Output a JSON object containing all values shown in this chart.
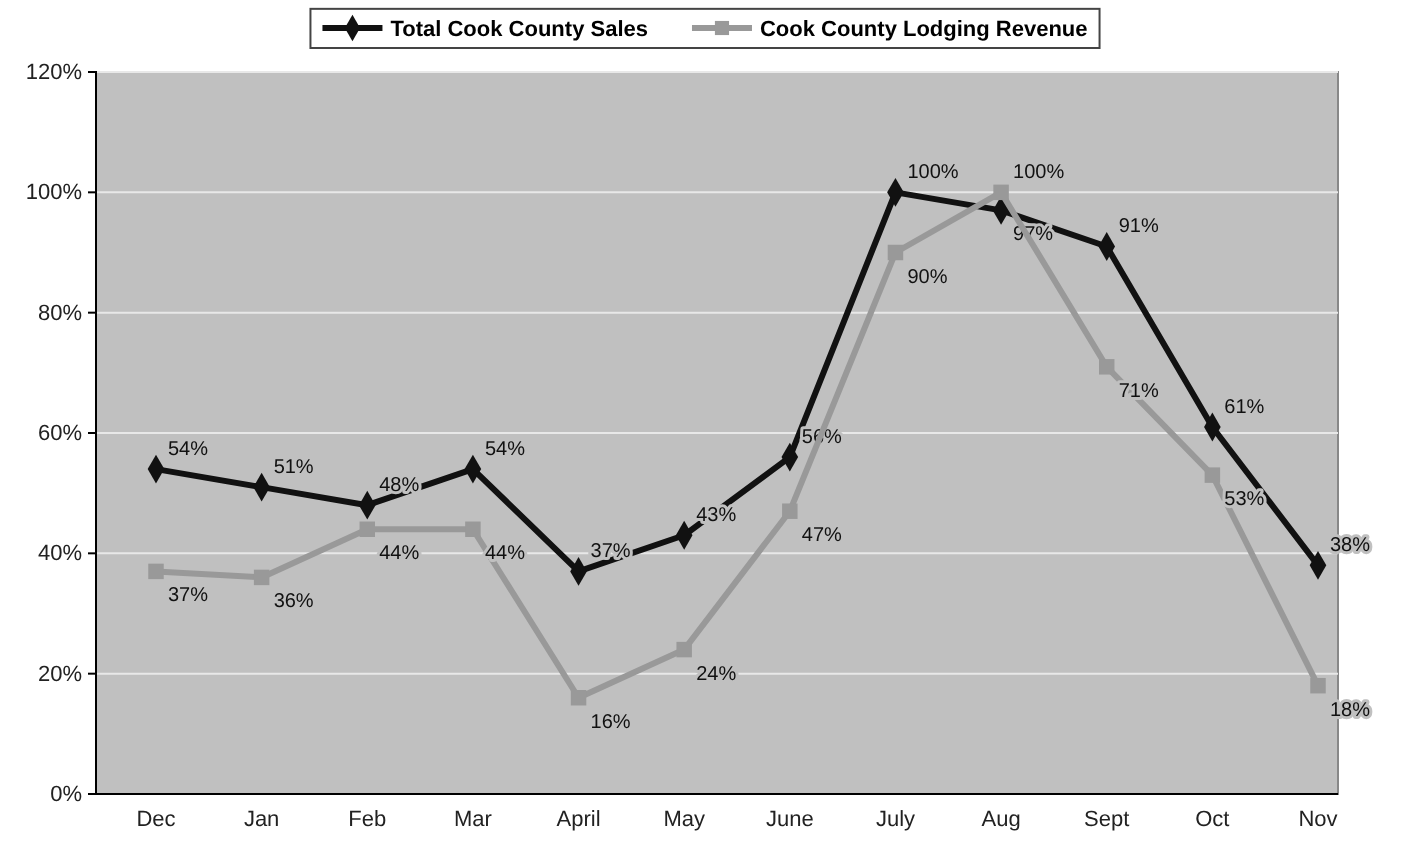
{
  "chart_data": {
    "type": "line",
    "categories": [
      "Dec",
      "Jan",
      "Feb",
      "Mar",
      "April",
      "May",
      "June",
      "July",
      "Aug",
      "Sept",
      "Oct",
      "Nov"
    ],
    "series": [
      {
        "name": "Total Cook County Sales",
        "color": "#111111",
        "marker": "diamond",
        "values": [
          54,
          51,
          48,
          54,
          37,
          43,
          56,
          100,
          97,
          91,
          61,
          38
        ],
        "value_labels": [
          "54%",
          "51%",
          "48%",
          "54%",
          "37%",
          "43%",
          "56%",
          "100%",
          "97%",
          "91%",
          "61%",
          "38%"
        ]
      },
      {
        "name": "Cook County Lodging Revenue",
        "color": "#999999",
        "marker": "square",
        "values": [
          37,
          36,
          44,
          44,
          16,
          24,
          47,
          90,
          100,
          71,
          53,
          18
        ],
        "value_labels": [
          "37%",
          "36%",
          "44%",
          "44%",
          "16%",
          "24%",
          "47%",
          "90%",
          "100%",
          "71%",
          "53%",
          "18%"
        ]
      }
    ],
    "ylim": [
      0,
      120
    ],
    "yticks": [
      {
        "value": 0,
        "label": "0%"
      },
      {
        "value": 20,
        "label": "20%"
      },
      {
        "value": 40,
        "label": "40%"
      },
      {
        "value": 60,
        "label": "60%"
      },
      {
        "value": 80,
        "label": "80%"
      },
      {
        "value": 100,
        "label": "100%"
      },
      {
        "value": 120,
        "label": "120%"
      }
    ],
    "grid": "y",
    "legend": "top",
    "line_style": "solid"
  }
}
